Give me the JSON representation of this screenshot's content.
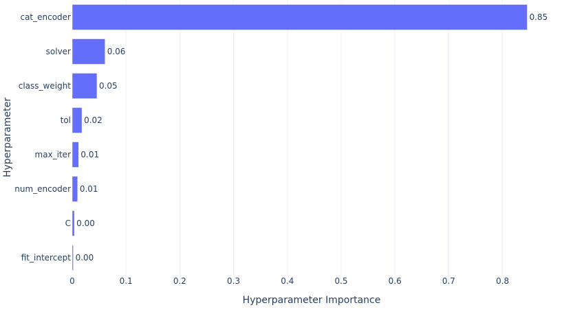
{
  "chart_data": {
    "type": "bar",
    "orientation": "horizontal",
    "categories": [
      "cat_encoder",
      "solver",
      "class_weight",
      "tol",
      "max_iter",
      "num_encoder",
      "C",
      "fit_intercept"
    ],
    "values": [
      0.846,
      0.061,
      0.046,
      0.018,
      0.012,
      0.01,
      0.004,
      0.002
    ],
    "bar_labels": [
      "0.85",
      "0.06",
      "0.05",
      "0.02",
      "0.01",
      "0.01",
      "0.00",
      "0.00"
    ],
    "xlabel": "Hyperparameter Importance",
    "ylabel": "Hyperparameter",
    "xlim": [
      0,
      0.89
    ],
    "xticks": [
      0,
      0.1,
      0.2,
      0.3,
      0.4,
      0.5,
      0.6,
      0.7,
      0.8
    ],
    "xtick_labels": [
      "0",
      "0.1",
      "0.2",
      "0.3",
      "0.4",
      "0.5",
      "0.6",
      "0.7",
      "0.8"
    ],
    "grid": true,
    "legend": "none",
    "bar_color": "#636efa",
    "text_color": "#2a3f5f",
    "grid_color": "#ebf0f8"
  }
}
